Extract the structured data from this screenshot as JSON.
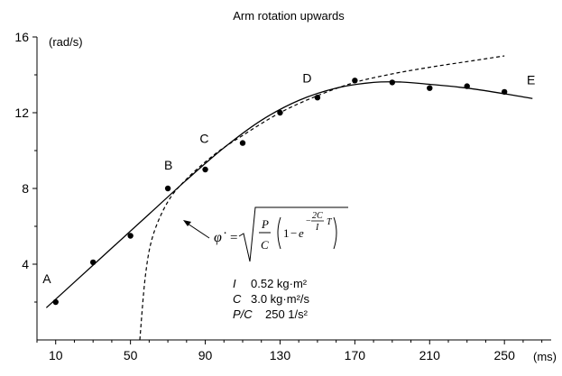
{
  "chart_data": {
    "type": "scatter",
    "title": "Arm rotation upwards",
    "xlabel": "(ms)",
    "ylabel": "(rad/s)",
    "xlim": [
      0,
      275
    ],
    "ylim": [
      0,
      16
    ],
    "x_ticks": [
      10,
      50,
      90,
      130,
      170,
      210,
      250
    ],
    "y_ticks": [
      4,
      8,
      12,
      16
    ],
    "grid": false,
    "series": [
      {
        "marker": "dot",
        "x": [
          10,
          30,
          50,
          70,
          90,
          110,
          130,
          150,
          170,
          190,
          210,
          230,
          250
        ],
        "y": [
          2.0,
          4.1,
          5.5,
          8.0,
          9.0,
          10.4,
          12.0,
          12.8,
          13.7,
          13.6,
          13.3,
          13.4,
          13.1
        ]
      },
      {
        "style": "solid",
        "x": [
          5,
          20,
          40,
          60,
          80,
          100,
          120,
          140,
          160,
          180,
          195,
          210,
          230,
          250,
          265
        ],
        "y": [
          1.7,
          3.05,
          4.85,
          6.65,
          8.45,
          10.15,
          11.6,
          12.65,
          13.3,
          13.6,
          13.62,
          13.5,
          13.3,
          13.0,
          12.75
        ]
      },
      {
        "style": "dashed",
        "x": [
          55,
          58,
          62,
          70,
          80,
          95,
          110,
          130,
          150,
          170,
          190,
          210,
          230,
          250
        ],
        "y": [
          0,
          3.4,
          5.5,
          7.3,
          8.5,
          9.8,
          10.8,
          12.0,
          12.9,
          13.6,
          14.05,
          14.4,
          14.7,
          15.0
        ]
      }
    ],
    "annotations": [
      {
        "text": "A",
        "x": 3,
        "y": 3.0
      },
      {
        "text": "B",
        "x": 68,
        "y": 9.0
      },
      {
        "text": "C",
        "x": 87,
        "y": 10.4
      },
      {
        "text": "D",
        "x": 142,
        "y": 13.6
      },
      {
        "text": "E",
        "x": 262,
        "y": 13.5
      }
    ],
    "formula": {
      "lhs": "φ̇",
      "eq": "=",
      "P": "P",
      "C": "C",
      "one": "1",
      "minus": "−",
      "e": "e",
      "exp_num": "2C",
      "exp_den": "I",
      "exp_T": "T"
    },
    "params": [
      {
        "symbol": "I",
        "value": "0.52 kg·m²"
      },
      {
        "symbol": "C",
        "value": "3.0 kg·m²/s"
      },
      {
        "symbol": "P/C",
        "value": "250 1/s²"
      }
    ]
  }
}
